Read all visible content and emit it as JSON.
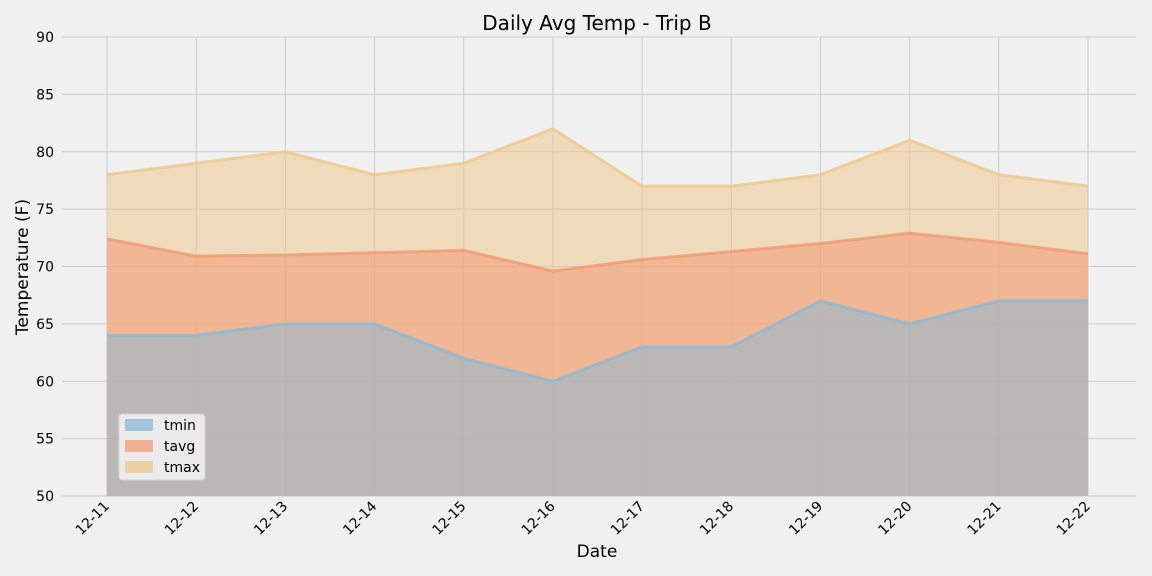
{
  "chart_data": {
    "type": "area",
    "title": "Daily Avg Temp - Trip B",
    "xlabel": "Date",
    "ylabel": "Temperature (F)",
    "categories": [
      "12-11",
      "12-12",
      "12-13",
      "12-14",
      "12-15",
      "12-16",
      "12-17",
      "12-18",
      "12-19",
      "12-20",
      "12-21",
      "12-22"
    ],
    "ylim": [
      50,
      90
    ],
    "yticks": [
      50,
      55,
      60,
      65,
      70,
      75,
      80,
      85,
      90
    ],
    "grid": true,
    "stacked": false,
    "legend_position": "lower-left",
    "series": [
      {
        "name": "tmin",
        "color": "#8fb8d4",
        "values": [
          64,
          64,
          65,
          65,
          62,
          60,
          63,
          63,
          67,
          65,
          67,
          67
        ]
      },
      {
        "name": "tavg",
        "color": "#f29b77",
        "values": [
          72.4,
          70.9,
          71.0,
          71.2,
          71.4,
          69.6,
          70.6,
          71.3,
          72.0,
          72.9,
          72.1,
          71.1
        ]
      },
      {
        "name": "tmax",
        "color": "#eec88f",
        "values": [
          78,
          79,
          80,
          78,
          79,
          82,
          77,
          77,
          78,
          81,
          78,
          77
        ]
      }
    ]
  }
}
